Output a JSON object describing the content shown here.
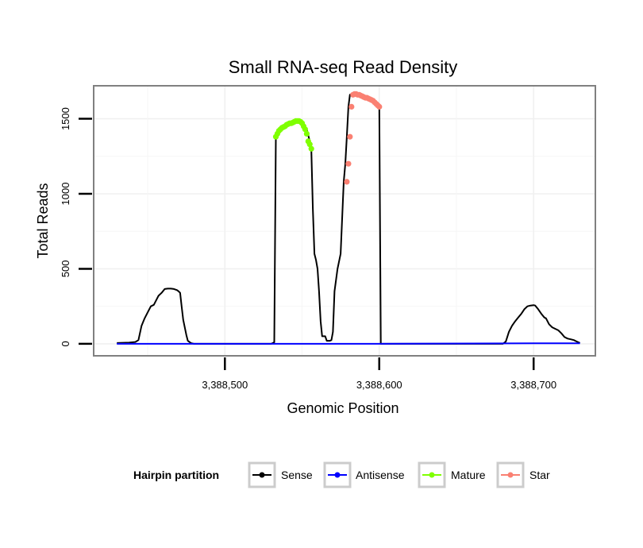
{
  "chart_data": {
    "type": "line",
    "title": "Small RNA-seq Read Density",
    "xlabel": "Genomic Position",
    "ylabel": "Total Reads",
    "xlim": [
      3388415,
      3388740
    ],
    "ylim": [
      -80,
      1720
    ],
    "x_ticks": [
      3388500,
      3388600,
      3388700
    ],
    "x_tick_labels": [
      "3,388,500",
      "3,388,600",
      "3,388,700"
    ],
    "y_ticks": [
      0,
      500,
      1000,
      1500
    ],
    "y_tick_labels": [
      "0",
      "500",
      "1000",
      "1500"
    ],
    "grid": true,
    "legend": {
      "title": "Hairpin partition",
      "placement": "bottom",
      "entries": [
        {
          "label": "Sense",
          "color": "#000000"
        },
        {
          "label": "Antisense",
          "color": "#0000ff"
        },
        {
          "label": "Mature",
          "color": "#7fff00"
        },
        {
          "label": "Star",
          "color": "#fa8072"
        }
      ]
    },
    "series": [
      {
        "name": "Sense",
        "color": "#000000",
        "x": [
          3388430,
          3388438,
          3388442,
          3388444,
          3388446,
          3388448,
          3388450,
          3388452,
          3388454,
          3388456,
          3388457,
          3388459,
          3388461,
          3388463,
          3388465,
          3388467,
          3388469,
          3388470,
          3388471,
          3388472,
          3388473,
          3388475,
          3388476,
          3388478,
          3388479,
          3388480,
          3388500,
          3388520,
          3388530,
          3388532,
          3388533,
          3388535,
          3388538,
          3388540,
          3388542,
          3388545,
          3388547,
          3388549,
          3388551,
          3388553,
          3388555,
          3388556,
          3388557,
          3388558,
          3388559,
          3388560,
          3388561,
          3388562,
          3388563,
          3388565,
          3388566,
          3388567,
          3388568,
          3388569,
          3388570,
          3388571,
          3388573,
          3388575,
          3388577,
          3388578,
          3388579,
          3388580,
          3388581,
          3388582,
          3388585,
          3388590,
          3388595,
          3388598,
          3388599,
          3388600,
          3388601,
          3388620,
          3388650,
          3388680,
          3388682,
          3388684,
          3388686,
          3388688,
          3388690,
          3388692,
          3388694,
          3388696,
          3388698,
          3388700,
          3388701,
          3388703,
          3388705,
          3388707,
          3388708,
          3388710,
          3388712,
          3388714,
          3388716,
          3388718,
          3388720,
          3388722,
          3388724,
          3388726,
          3388728,
          3388730
        ],
        "y": [
          5,
          8,
          12,
          25,
          120,
          170,
          210,
          250,
          260,
          300,
          320,
          340,
          365,
          368,
          368,
          365,
          358,
          350,
          340,
          250,
          160,
          60,
          20,
          5,
          2,
          0,
          0,
          0,
          0,
          10,
          1380,
          1420,
          1440,
          1460,
          1470,
          1480,
          1485,
          1485,
          1470,
          1430,
          1350,
          1290,
          900,
          600,
          560,
          500,
          350,
          150,
          50,
          50,
          20,
          20,
          20,
          25,
          80,
          350,
          500,
          600,
          1080,
          1200,
          1380,
          1580,
          1660,
          1665,
          1660,
          1645,
          1630,
          1610,
          1590,
          1580,
          0,
          0,
          0,
          0,
          15,
          80,
          120,
          150,
          175,
          200,
          230,
          250,
          255,
          258,
          255,
          230,
          200,
          175,
          170,
          130,
          110,
          100,
          90,
          70,
          45,
          35,
          30,
          25,
          15,
          5
        ]
      },
      {
        "name": "Antisense",
        "color": "#0000ff",
        "x": [
          3388430,
          3388500,
          3388600,
          3388700,
          3388730
        ],
        "y": [
          0,
          0,
          0,
          3,
          3
        ]
      },
      {
        "name": "Mature",
        "color": "#7fff00",
        "x": [
          3388533,
          3388534,
          3388535,
          3388536,
          3388537,
          3388538,
          3388539,
          3388540,
          3388541,
          3388542,
          3388543,
          3388544,
          3388545,
          3388546,
          3388547,
          3388548,
          3388549,
          3388550,
          3388551,
          3388552,
          3388553,
          3388554,
          3388555,
          3388556
        ],
        "y": [
          1380,
          1400,
          1420,
          1430,
          1440,
          1445,
          1450,
          1460,
          1465,
          1470,
          1470,
          1475,
          1480,
          1485,
          1485,
          1485,
          1480,
          1470,
          1450,
          1430,
          1400,
          1350,
          1330,
          1300
        ]
      },
      {
        "name": "Star",
        "color": "#fa8072",
        "x": [
          3388579,
          3388580,
          3388581,
          3388582,
          3388583,
          3388584,
          3388585,
          3388586,
          3388587,
          3388588,
          3388589,
          3388590,
          3388591,
          3388592,
          3388593,
          3388594,
          3388595,
          3388596,
          3388597,
          3388598,
          3388599,
          3388600
        ],
        "y": [
          1080,
          1200,
          1380,
          1580,
          1660,
          1665,
          1665,
          1660,
          1660,
          1655,
          1650,
          1645,
          1640,
          1640,
          1635,
          1630,
          1625,
          1620,
          1610,
          1600,
          1590,
          1580
        ]
      }
    ]
  }
}
